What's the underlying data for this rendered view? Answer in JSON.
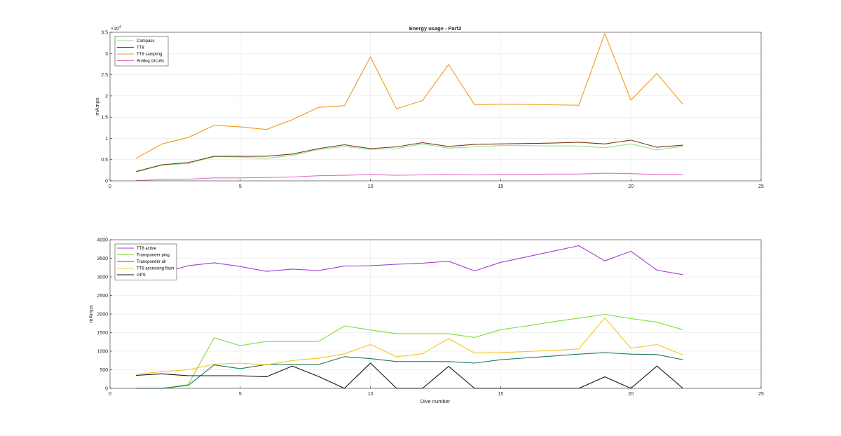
{
  "chart_data": [
    {
      "type": "line",
      "title": "Energy usage - Part2",
      "xlabel": "",
      "ylabel": "mAmps",
      "exponent_label": "×10",
      "exponent_power": "4",
      "xlim": [
        0,
        25
      ],
      "ylim": [
        0,
        35000
      ],
      "xticks": [
        "0",
        "5",
        "10",
        "15",
        "20",
        "25"
      ],
      "yticks": [
        "0",
        "0.5",
        "1",
        "1.5",
        "2",
        "2.5",
        "3",
        "3.5"
      ],
      "ytick_values": [
        0,
        5000,
        10000,
        15000,
        20000,
        25000,
        30000,
        35000
      ],
      "grid": true,
      "legend_position": "top-left",
      "x": [
        1,
        2,
        3,
        4,
        5,
        6,
        7,
        8,
        9,
        10,
        11,
        12,
        13,
        14,
        15,
        16,
        17,
        18,
        19,
        20,
        21,
        22
      ],
      "series": [
        {
          "name": "Compass",
          "color": "#8fe38f",
          "values": [
            2100,
            3700,
            4100,
            5700,
            5600,
            5300,
            6000,
            7400,
            8100,
            7400,
            7600,
            8700,
            7700,
            8000,
            8300,
            8300,
            8200,
            8200,
            7800,
            8700,
            7300,
            8100
          ]
        },
        {
          "name": "TT8",
          "color": "#7b3510",
          "values": [
            2200,
            3800,
            4300,
            5800,
            5800,
            5800,
            6300,
            7600,
            8500,
            7600,
            8000,
            9000,
            8100,
            8600,
            8700,
            8800,
            8900,
            9100,
            8700,
            9600,
            7900,
            8400
          ]
        },
        {
          "name": "TT8 sampling",
          "color": "#f19a1e",
          "values": [
            5300,
            8700,
            10200,
            13100,
            12700,
            12100,
            14400,
            17300,
            17700,
            29200,
            17000,
            18900,
            27400,
            17900,
            18100,
            18000,
            17900,
            17800,
            34700,
            19000,
            25300,
            18000
          ]
        },
        {
          "name": "Analog circuits",
          "color": "#e070c8",
          "values": [
            100,
            300,
            400,
            700,
            700,
            800,
            900,
            1200,
            1300,
            1500,
            1300,
            1400,
            1500,
            1400,
            1500,
            1500,
            1600,
            1600,
            1800,
            1700,
            1500,
            1500
          ]
        }
      ]
    },
    {
      "type": "line",
      "title": "",
      "xlabel": "Dive number",
      "ylabel": "mAmps",
      "xlim": [
        0,
        25
      ],
      "ylim": [
        0,
        4000
      ],
      "xticks": [
        "0",
        "5",
        "10",
        "15",
        "20",
        "25"
      ],
      "yticks": [
        "0",
        "500",
        "1000",
        "1500",
        "2000",
        "2500",
        "3000",
        "3500",
        "4000"
      ],
      "ytick_values": [
        0,
        500,
        1000,
        1500,
        2000,
        2500,
        3000,
        3500,
        4000
      ],
      "grid": true,
      "legend_position": "top-left",
      "x": [
        1,
        2,
        3,
        4,
        5,
        6,
        7,
        8,
        9,
        10,
        11,
        12,
        13,
        14,
        15,
        16,
        17,
        18,
        19,
        20,
        21,
        22
      ],
      "series": [
        {
          "name": "TT8 active",
          "color": "#a33ad6",
          "values": [
            2950,
            3100,
            3300,
            3380,
            3280,
            3150,
            3210,
            3170,
            3290,
            3300,
            3340,
            3370,
            3420,
            3160,
            3390,
            3540,
            3690,
            3840,
            3430,
            3690,
            3180,
            3060
          ]
        },
        {
          "name": "Transponder ping",
          "color": "#80dd32",
          "values": [
            0,
            0,
            100,
            1360,
            1150,
            1260,
            1260,
            1260,
            1680,
            1570,
            1470,
            1470,
            1470,
            1370,
            1580,
            1680,
            1790,
            1890,
            1990,
            1880,
            1780,
            1580
          ]
        },
        {
          "name": "Transponder all",
          "color": "#1e7a5f",
          "values": [
            0,
            0,
            80,
            630,
            530,
            640,
            640,
            640,
            850,
            800,
            720,
            720,
            720,
            680,
            770,
            820,
            870,
            920,
            960,
            920,
            910,
            770
          ]
        },
        {
          "name": "TT8 accessing flash",
          "color": "#f5c518",
          "values": [
            380,
            450,
            500,
            650,
            680,
            630,
            750,
            810,
            930,
            1180,
            850,
            930,
            1340,
            950,
            960,
            990,
            1020,
            1060,
            1900,
            1080,
            1180,
            900
          ]
        },
        {
          "name": "GPS",
          "color": "#111111",
          "values": [
            350,
            390,
            340,
            340,
            340,
            310,
            600,
            320,
            0,
            680,
            0,
            0,
            590,
            0,
            0,
            0,
            0,
            0,
            310,
            0,
            600,
            0
          ]
        }
      ]
    }
  ]
}
